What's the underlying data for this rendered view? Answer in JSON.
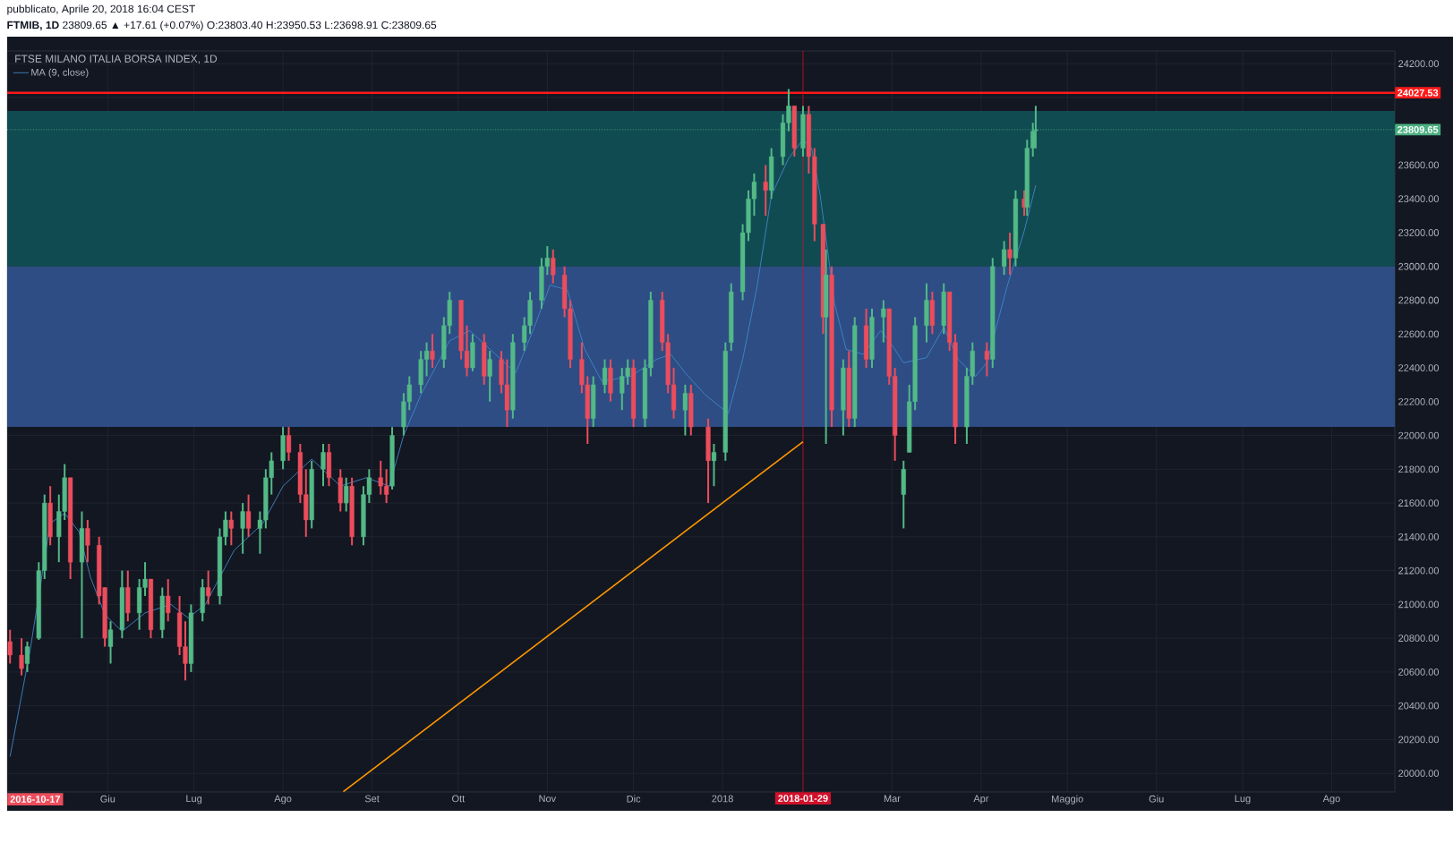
{
  "chart_data": {
    "type": "candlestick",
    "title": "FTSE MILANO ITALIA BORSA INDEX, 1D",
    "subtitle": "**FTMIB, 1D** 23809.65 ▲ +17.61 (+0.07%) O:23803.40 H:23950.53 L:23698.91 C:23809.65",
    "annotations": [
      "pubblicato, Aprile 20, 2018 16:04 CEST",
      "2016-10-17"
    ],
    "xlim": [
      "2017-04-27",
      "2018-08-23"
    ],
    "ylim": [
      19890,
      24275
    ],
    "xticks": [
      {
        "value": "2017-06-01",
        "label": "Giu"
      },
      {
        "value": "2017-07-01",
        "label": "Lug"
      },
      {
        "value": "2017-08-01",
        "label": "Ago"
      },
      {
        "value": "2017-09-01",
        "label": "Set"
      },
      {
        "value": "2017-10-01",
        "label": "Ott"
      },
      {
        "value": "2017-11-01",
        "label": "Nov"
      },
      {
        "value": "2017-12-01",
        "label": "Dic"
      },
      {
        "value": "2018-01-01",
        "label": "2018"
      },
      {
        "value": "2018-03-01",
        "label": "Mar"
      },
      {
        "value": "2018-04-01",
        "label": "Apr"
      },
      {
        "value": "2018-05-01",
        "label": "Maggio"
      },
      {
        "value": "2018-06-01",
        "label": "Giu"
      },
      {
        "value": "2018-07-01",
        "label": "Lug"
      },
      {
        "value": "2018-08-01",
        "label": "Ago"
      }
    ],
    "yticks": [
      {
        "value": 20000,
        "label": "20000.00"
      },
      {
        "value": 20200,
        "label": "20200.00"
      },
      {
        "value": 20400,
        "label": "20400.00"
      },
      {
        "value": 20600,
        "label": "20600.00"
      },
      {
        "value": 20800,
        "label": "20800.00"
      },
      {
        "value": 21000,
        "label": "21000.00"
      },
      {
        "value": 21200,
        "label": "21200.00"
      },
      {
        "value": 21400,
        "label": "21400.00"
      },
      {
        "value": 21600,
        "label": "21600.00"
      },
      {
        "value": 21800,
        "label": "21800.00"
      },
      {
        "value": 22000,
        "label": "22000.00"
      },
      {
        "value": 22200,
        "label": "22200.00"
      },
      {
        "value": 22400,
        "label": "22400.00"
      },
      {
        "value": 22600,
        "label": "22600.00"
      },
      {
        "value": 22800,
        "label": "22800.00"
      },
      {
        "value": 23000,
        "label": "23000.00"
      },
      {
        "value": 23200,
        "label": "23200.00"
      },
      {
        "value": 23400,
        "label": "23400.00"
      },
      {
        "value": 23600,
        "label": "23600.00"
      },
      {
        "value": 23800,
        "label": null
      },
      {
        "value": 24000,
        "label": null
      },
      {
        "value": 24200,
        "label": "24200.00"
      }
    ],
    "grid": true,
    "legend": "top left",
    "bands": [
      {
        "axis": "y",
        "from": 23000,
        "to": 23920,
        "color": "#114b52"
      },
      {
        "axis": "y",
        "from": 22050,
        "to": 23000,
        "color": "#2e4d85"
      }
    ],
    "ref_lines": [
      {
        "axis": "y",
        "value": 24027.53,
        "label": "24027.53",
        "color": "#ff1a1a",
        "line_style": "solid"
      },
      {
        "axis": "y",
        "value": 23809.65,
        "label": "23809.65",
        "color": "#4caf82",
        "line_style": "dotted"
      },
      {
        "axis": "x",
        "value": "2018-01-29",
        "label": "2018-01-29",
        "color": "#d0102a",
        "line_style": "solid"
      }
    ],
    "x": [
      "2017-04-28",
      "2017-05-02",
      "2017-05-04",
      "2017-05-08",
      "2017-05-10",
      "2017-05-12",
      "2017-05-15",
      "2017-05-17",
      "2017-05-19",
      "2017-05-23",
      "2017-05-25",
      "2017-05-29",
      "2017-05-31",
      "2017-06-02",
      "2017-06-06",
      "2017-06-08",
      "2017-06-12",
      "2017-06-14",
      "2017-06-16",
      "2017-06-20",
      "2017-06-22",
      "2017-06-26",
      "2017-06-28",
      "2017-06-30",
      "2017-07-04",
      "2017-07-06",
      "2017-07-10",
      "2017-07-12",
      "2017-07-14",
      "2017-07-18",
      "2017-07-20",
      "2017-07-24",
      "2017-07-26",
      "2017-07-28",
      "2017-08-01",
      "2017-08-03",
      "2017-08-07",
      "2017-08-09",
      "2017-08-11",
      "2017-08-15",
      "2017-08-17",
      "2017-08-21",
      "2017-08-23",
      "2017-08-25",
      "2017-08-29",
      "2017-08-31",
      "2017-09-04",
      "2017-09-06",
      "2017-09-08",
      "2017-09-12",
      "2017-09-14",
      "2017-09-18",
      "2017-09-20",
      "2017-09-22",
      "2017-09-26",
      "2017-09-28",
      "2017-10-02",
      "2017-10-04",
      "2017-10-06",
      "2017-10-10",
      "2017-10-12",
      "2017-10-16",
      "2017-10-18",
      "2017-10-20",
      "2017-10-24",
      "2017-10-26",
      "2017-10-30",
      "2017-11-01",
      "2017-11-03",
      "2017-11-07",
      "2017-11-09",
      "2017-11-13",
      "2017-11-15",
      "2017-11-17",
      "2017-11-21",
      "2017-11-23",
      "2017-11-27",
      "2017-11-29",
      "2017-12-01",
      "2017-12-05",
      "2017-12-07",
      "2017-12-11",
      "2017-12-13",
      "2017-12-15",
      "2017-12-19",
      "2017-12-21",
      "2017-12-27",
      "2017-12-29",
      "2018-01-02",
      "2018-01-04",
      "2018-01-08",
      "2018-01-10",
      "2018-01-12",
      "2018-01-16",
      "2018-01-18",
      "2018-01-22",
      "2018-01-24",
      "2018-01-26",
      "2018-01-29",
      "2018-01-31",
      "2018-02-02",
      "2018-02-05",
      "2018-02-06",
      "2018-02-08",
      "2018-02-12",
      "2018-02-14",
      "2018-02-16",
      "2018-02-20",
      "2018-02-22",
      "2018-02-26",
      "2018-02-28",
      "2018-03-02",
      "2018-03-05",
      "2018-03-07",
      "2018-03-09",
      "2018-03-13",
      "2018-03-15",
      "2018-03-19",
      "2018-03-21",
      "2018-03-23",
      "2018-03-27",
      "2018-03-29",
      "2018-04-03",
      "2018-04-05",
      "2018-04-09",
      "2018-04-11",
      "2018-04-13",
      "2018-04-16",
      "2018-04-17",
      "2018-04-19",
      "2018-04-20"
    ],
    "ohlc": [
      [
        20780,
        20850,
        20650,
        20700
      ],
      [
        20700,
        20800,
        20580,
        20620
      ],
      [
        20650,
        20780,
        20600,
        20750
      ],
      [
        20800,
        21250,
        20790,
        21200
      ],
      [
        21200,
        21650,
        21150,
        21600
      ],
      [
        21600,
        21700,
        21350,
        21400
      ],
      [
        21400,
        21650,
        21250,
        21550
      ],
      [
        21550,
        21830,
        21500,
        21750
      ],
      [
        21750,
        21750,
        21150,
        21250
      ],
      [
        21250,
        21550,
        20800,
        21450
      ],
      [
        21450,
        21500,
        21250,
        21350
      ],
      [
        21350,
        21400,
        21000,
        21050
      ],
      [
        21100,
        21100,
        20750,
        20800
      ],
      [
        20750,
        20900,
        20650,
        20850
      ],
      [
        20850,
        21200,
        20800,
        21100
      ],
      [
        21100,
        21200,
        20900,
        20950
      ],
      [
        20950,
        21150,
        20850,
        21100
      ],
      [
        21100,
        21250,
        21050,
        21150
      ],
      [
        21150,
        21150,
        20800,
        20850
      ],
      [
        20850,
        21100,
        20800,
        21050
      ],
      [
        21050,
        21150,
        20900,
        20950
      ],
      [
        20950,
        21050,
        20700,
        20750
      ],
      [
        20750,
        20900,
        20550,
        20650
      ],
      [
        20650,
        21000,
        20600,
        20950
      ],
      [
        20950,
        21150,
        20900,
        21100
      ],
      [
        21100,
        21200,
        21000,
        21050
      ],
      [
        21050,
        21450,
        21000,
        21400
      ],
      [
        21400,
        21550,
        21350,
        21500
      ],
      [
        21500,
        21550,
        21350,
        21450
      ],
      [
        21450,
        21600,
        21300,
        21550
      ],
      [
        21550,
        21650,
        21400,
        21450
      ],
      [
        21450,
        21550,
        21300,
        21500
      ],
      [
        21500,
        21800,
        21450,
        21750
      ],
      [
        21750,
        21900,
        21650,
        21850
      ],
      [
        21850,
        22050,
        21800,
        22000
      ],
      [
        22000,
        22050,
        21850,
        21900
      ],
      [
        21900,
        21950,
        21600,
        21650
      ],
      [
        21650,
        21800,
        21400,
        21500
      ],
      [
        21500,
        21850,
        21450,
        21800
      ],
      [
        21800,
        21950,
        21700,
        21900
      ],
      [
        21900,
        21950,
        21700,
        21750
      ],
      [
        21750,
        21800,
        21550,
        21600
      ],
      [
        21600,
        21750,
        21550,
        21700
      ],
      [
        21700,
        21750,
        21350,
        21400
      ],
      [
        21400,
        21700,
        21350,
        21650
      ],
      [
        21650,
        21800,
        21600,
        21750
      ],
      [
        21750,
        21850,
        21650,
        21700
      ],
      [
        21700,
        21800,
        21600,
        21650
      ],
      [
        21700,
        22050,
        21680,
        22000
      ],
      [
        22050,
        22250,
        22000,
        22200
      ],
      [
        22200,
        22350,
        22150,
        22300
      ],
      [
        22300,
        22500,
        22250,
        22450
      ],
      [
        22450,
        22550,
        22350,
        22500
      ],
      [
        22500,
        22600,
        22400,
        22450
      ],
      [
        22450,
        22700,
        22400,
        22650
      ],
      [
        22650,
        22850,
        22600,
        22800
      ],
      [
        22800,
        22800,
        22450,
        22500
      ],
      [
        22500,
        22650,
        22350,
        22400
      ],
      [
        22400,
        22600,
        22380,
        22550
      ],
      [
        22550,
        22600,
        22300,
        22350
      ],
      [
        22350,
        22500,
        22200,
        22450
      ],
      [
        22450,
        22500,
        22250,
        22300
      ],
      [
        22300,
        22450,
        22050,
        22150
      ],
      [
        22150,
        22600,
        22100,
        22550
      ],
      [
        22550,
        22700,
        22500,
        22650
      ],
      [
        22650,
        22850,
        22600,
        22800
      ],
      [
        22800,
        23050,
        22750,
        23000
      ],
      [
        23000,
        23120,
        22950,
        23050
      ],
      [
        23050,
        23100,
        22900,
        22950
      ],
      [
        22950,
        23000,
        22700,
        22750
      ],
      [
        22750,
        22800,
        22400,
        22450
      ],
      [
        22450,
        22550,
        22250,
        22300
      ],
      [
        22300,
        22350,
        21950,
        22100
      ],
      [
        22100,
        22350,
        22050,
        22300
      ],
      [
        22300,
        22450,
        22250,
        22400
      ],
      [
        22400,
        22450,
        22200,
        22250
      ],
      [
        22250,
        22400,
        22150,
        22350
      ],
      [
        22350,
        22450,
        22300,
        22400
      ],
      [
        22400,
        22450,
        22050,
        22100
      ],
      [
        22100,
        22450,
        22050,
        22400
      ],
      [
        22400,
        22850,
        22350,
        22800
      ],
      [
        22800,
        22850,
        22500,
        22550
      ],
      [
        22550,
        22600,
        22250,
        22300
      ],
      [
        22300,
        22400,
        22100,
        22150
      ],
      [
        22150,
        22300,
        22000,
        22250
      ],
      [
        22250,
        22300,
        22000,
        22050
      ],
      [
        22050,
        22100,
        21600,
        21850
      ],
      [
        21850,
        21950,
        21700,
        21900
      ],
      [
        21900,
        22550,
        21850,
        22500
      ],
      [
        22550,
        22900,
        22500,
        22850
      ],
      [
        22850,
        23250,
        22800,
        23200
      ],
      [
        23200,
        23450,
        23150,
        23400
      ],
      [
        23400,
        23550,
        23300,
        23500
      ],
      [
        23500,
        23600,
        23300,
        23450
      ],
      [
        23450,
        23700,
        23400,
        23650
      ],
      [
        23650,
        23900,
        23600,
        23850
      ],
      [
        23850,
        24050,
        23800,
        23950
      ],
      [
        23950,
        23950,
        23650,
        23700
      ],
      [
        23700,
        23950,
        23650,
        23900
      ],
      [
        23900,
        23950,
        23550,
        23650
      ],
      [
        23650,
        23700,
        23150,
        23250
      ],
      [
        23250,
        23250,
        22600,
        22700
      ],
      [
        22700,
        23100,
        21950,
        22950
      ],
      [
        22950,
        23000,
        22050,
        22150
      ],
      [
        22150,
        22450,
        22000,
        22400
      ],
      [
        22400,
        22500,
        22050,
        22100
      ],
      [
        22100,
        22700,
        22050,
        22650
      ],
      [
        22650,
        22750,
        22400,
        22450
      ],
      [
        22450,
        22750,
        22400,
        22700
      ],
      [
        22700,
        22800,
        22550,
        22750
      ],
      [
        22750,
        22750,
        22300,
        22350
      ],
      [
        22350,
        22400,
        21850,
        22000
      ],
      [
        21650,
        21850,
        21450,
        21800
      ],
      [
        21900,
        22300,
        21900,
        22200
      ],
      [
        22200,
        22700,
        22150,
        22650
      ],
      [
        22650,
        22900,
        22550,
        22800
      ],
      [
        22800,
        22850,
        22600,
        22650
      ],
      [
        22650,
        22900,
        22600,
        22850
      ],
      [
        22850,
        22850,
        22500,
        22550
      ],
      [
        22550,
        22600,
        21950,
        22050
      ],
      [
        22050,
        22400,
        21950,
        22350
      ],
      [
        22350,
        22550,
        22300,
        22500
      ],
      [
        22500,
        22550,
        22350,
        22450
      ],
      [
        22450,
        23050,
        22400,
        23000
      ],
      [
        23000,
        23150,
        22950,
        23100
      ],
      [
        23100,
        23200,
        22950,
        23050
      ],
      [
        23050,
        23450,
        23000,
        23400
      ],
      [
        23400,
        23450,
        23300,
        23350
      ],
      [
        23350,
        23750,
        23300,
        23700
      ],
      [
        23700,
        23850,
        23650,
        23800
      ],
      [
        23803.4,
        23950.53,
        23698.91,
        23809.65
      ]
    ],
    "series": [
      {
        "name": "MA (9, close)",
        "type": "line",
        "color": "#3f87c6",
        "x": [
          "2017-04-28",
          "2017-05-05",
          "2017-05-12",
          "2017-05-17",
          "2017-05-22",
          "2017-05-26",
          "2017-05-31",
          "2017-06-06",
          "2017-06-14",
          "2017-06-23",
          "2017-06-29",
          "2017-07-05",
          "2017-07-15",
          "2017-07-25",
          "2017-08-01",
          "2017-08-11",
          "2017-08-21",
          "2017-08-30",
          "2017-09-07",
          "2017-09-12",
          "2017-09-18",
          "2017-09-28",
          "2017-10-05",
          "2017-10-14",
          "2017-10-21",
          "2017-10-27",
          "2017-11-02",
          "2017-11-08",
          "2017-11-14",
          "2017-11-20",
          "2017-11-30",
          "2017-12-09",
          "2017-12-14",
          "2017-12-19",
          "2017-12-26",
          "2018-01-03",
          "2018-01-08",
          "2018-01-13",
          "2018-01-18",
          "2018-01-24",
          "2018-01-29",
          "2018-02-01",
          "2018-02-04",
          "2018-02-09",
          "2018-02-13",
          "2018-02-19",
          "2018-02-25",
          "2018-02-28",
          "2018-03-05",
          "2018-03-13",
          "2018-03-19",
          "2018-03-24",
          "2018-03-30",
          "2018-04-03",
          "2018-04-10",
          "2018-04-16",
          "2018-04-20"
        ],
        "values": [
          20100,
          20730,
          21480,
          21540,
          21430,
          21160,
          20940,
          20840,
          20950,
          21000,
          20920,
          21000,
          21320,
          21480,
          21700,
          21860,
          21700,
          21750,
          21700,
          22000,
          22240,
          22560,
          22620,
          22480,
          22370,
          22620,
          22890,
          22860,
          22510,
          22320,
          22350,
          22450,
          22480,
          22370,
          22240,
          22130,
          22450,
          22880,
          23420,
          23640,
          23750,
          23700,
          23420,
          22780,
          22510,
          22480,
          22620,
          22560,
          22430,
          22460,
          22640,
          22450,
          22350,
          22430,
          22880,
          23210,
          23480
        ]
      },
      {
        "type": "line",
        "color": "#ff9800",
        "x": [
          "2017-08-22",
          "2018-01-29"
        ],
        "values": [
          19892,
          21963
        ]
      }
    ]
  }
}
